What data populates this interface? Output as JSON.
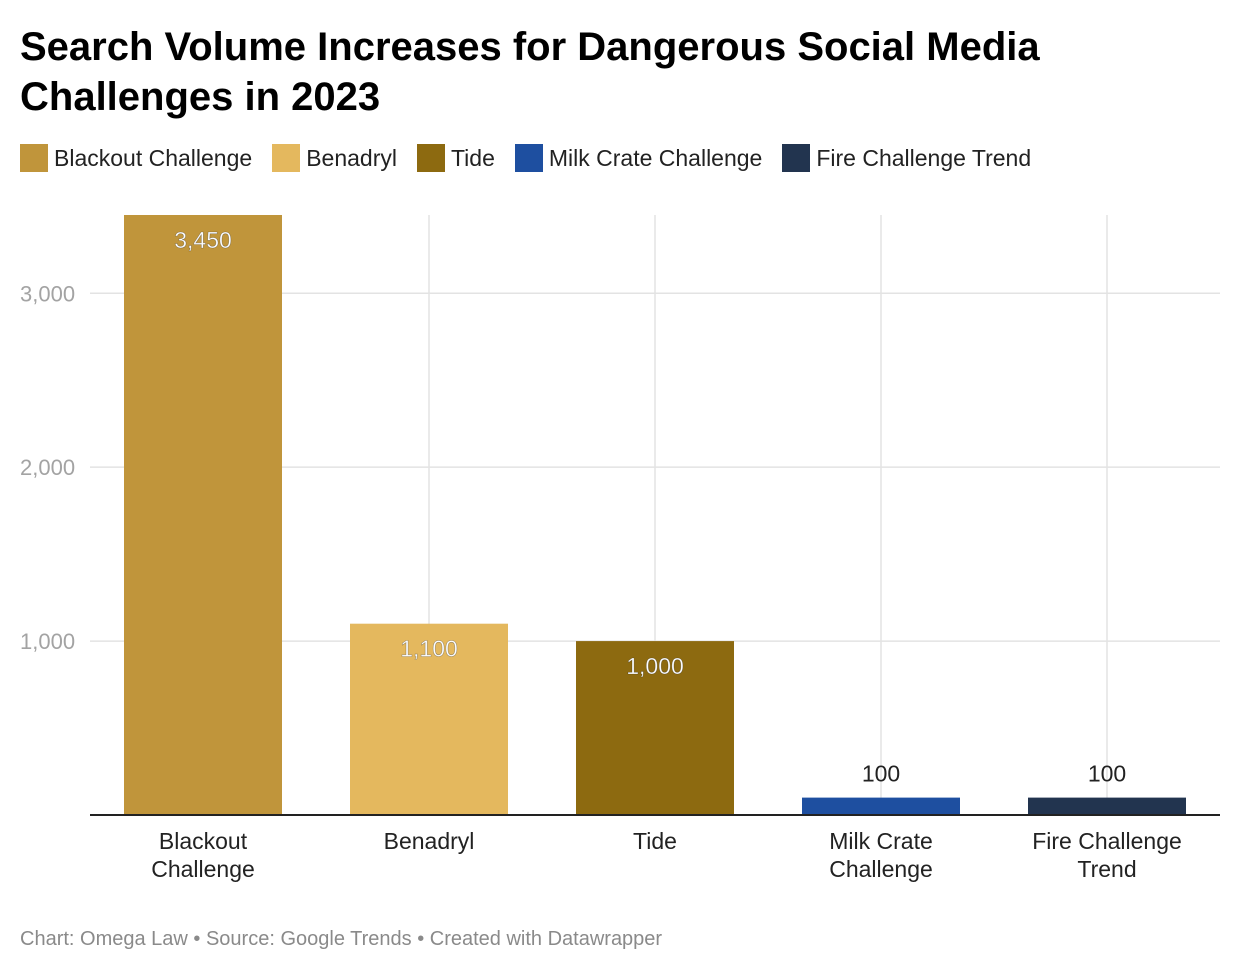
{
  "chart_data": {
    "type": "bar",
    "title": "Search Volume Increases for Dangerous Social Media Challenges in 2023",
    "categories": [
      "Blackout Challenge",
      "Benadryl",
      "Tide",
      "Milk Crate Challenge",
      "Fire Challenge Trend"
    ],
    "category_labels": [
      [
        "Blackout",
        "Challenge"
      ],
      [
        "Benadryl"
      ],
      [
        "Tide"
      ],
      [
        "Milk Crate",
        "Challenge"
      ],
      [
        "Fire Challenge",
        "Trend"
      ]
    ],
    "values": [
      3450,
      1100,
      1000,
      100,
      100
    ],
    "value_labels": [
      "3,450",
      "1,100",
      "1,000",
      "100",
      "100"
    ],
    "colors": [
      "#c0953b",
      "#e4b85e",
      "#8d6a10",
      "#1e4fa0",
      "#22344f"
    ],
    "legend": {
      "placement": "top-left",
      "entries": [
        "Blackout Challenge",
        "Benadryl",
        "Tide",
        "Milk Crate Challenge",
        "Fire Challenge Trend"
      ]
    },
    "yticks": [
      1000,
      2000,
      3000
    ],
    "ytick_labels": [
      "1,000",
      "2,000",
      "3,000"
    ],
    "ylim": [
      0,
      3450
    ],
    "grid": true,
    "xlabel": "",
    "ylabel": ""
  },
  "footer": {
    "text": "Chart: Omega Law • Source: Google Trends • Created with Datawrapper"
  }
}
